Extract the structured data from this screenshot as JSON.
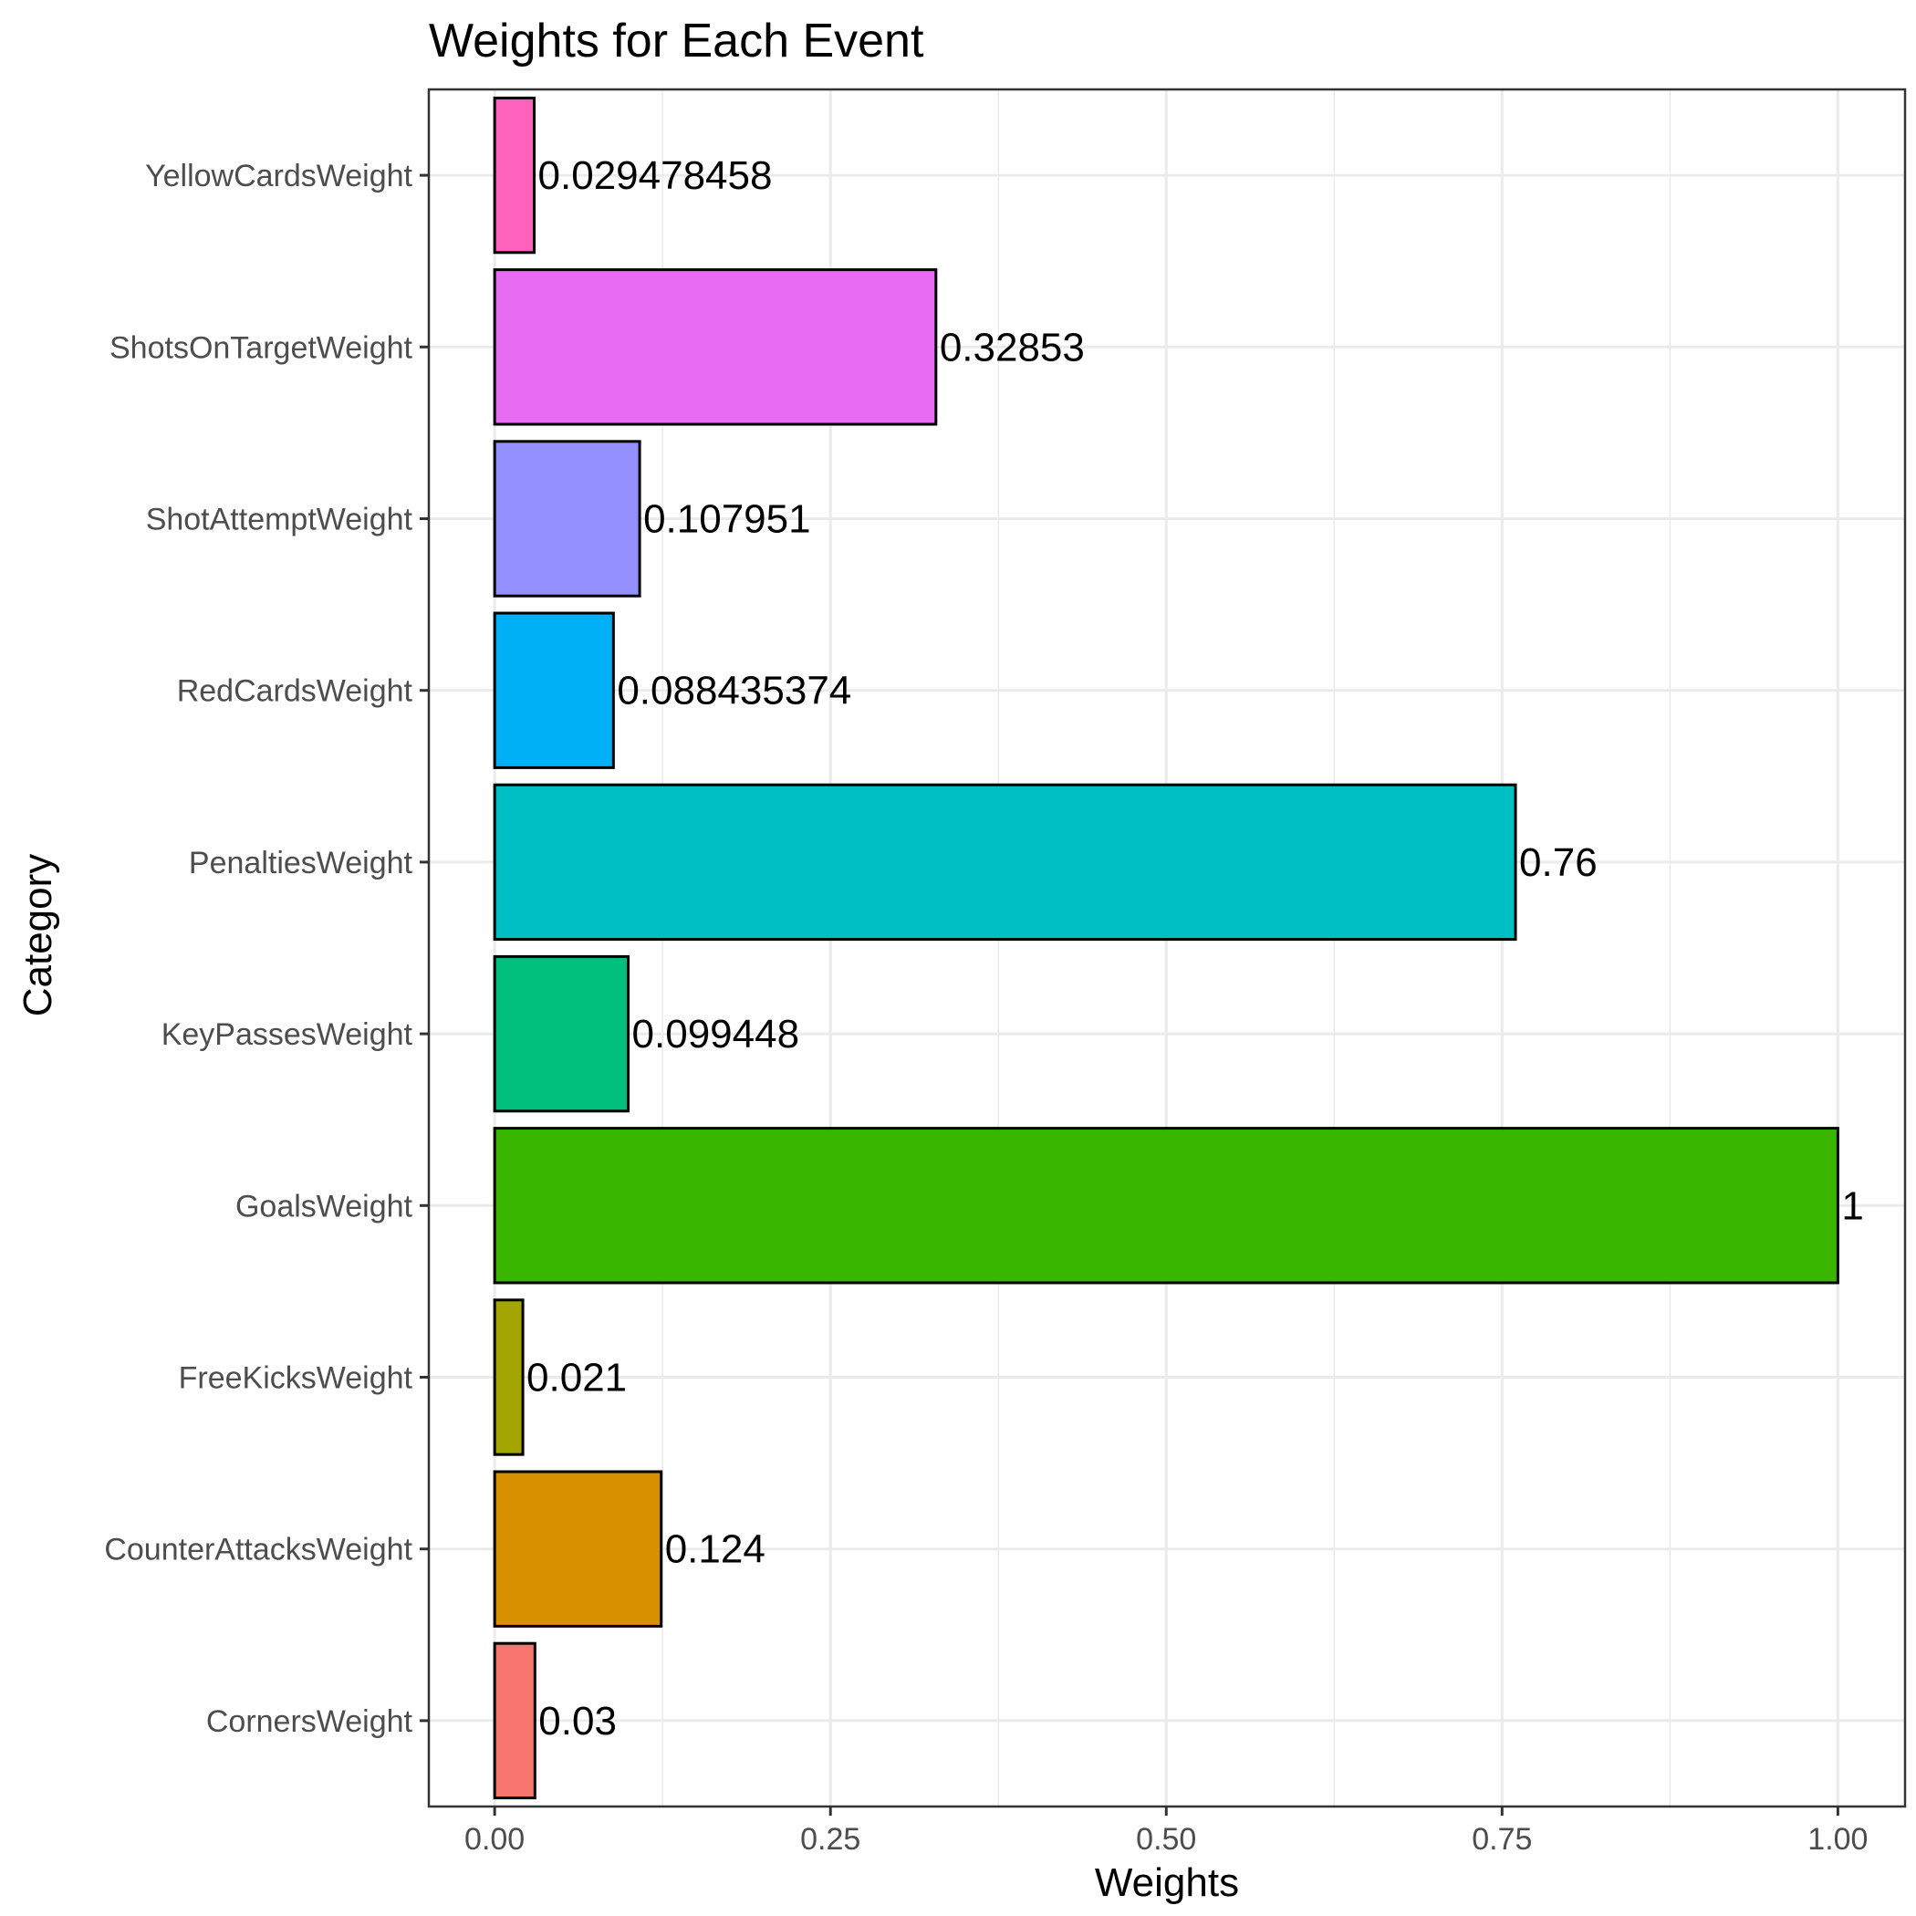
{
  "chart_data": {
    "type": "bar",
    "orientation": "horizontal",
    "title": "Weights for Each Event",
    "xlabel": "Weights",
    "ylabel": "Category",
    "xlim": [
      -0.049,
      1.05
    ],
    "x_ticks": [
      0.0,
      0.25,
      0.5,
      0.75,
      1.0
    ],
    "x_tick_labels": [
      "0.00",
      "0.25",
      "0.50",
      "0.75",
      "1.00"
    ],
    "grid": true,
    "legend": "none",
    "categories": [
      "CornersWeight",
      "CounterAttacksWeight",
      "FreeKicksWeight",
      "GoalsWeight",
      "KeyPassesWeight",
      "PenaltiesWeight",
      "RedCardsWeight",
      "ShotAttemptWeight",
      "ShotsOnTargetWeight",
      "YellowCardsWeight"
    ],
    "values": [
      0.03,
      0.124,
      0.021,
      1,
      0.099448,
      0.76,
      0.088435374,
      0.107951,
      0.32853,
      0.029478458
    ],
    "value_labels": [
      "0.03",
      "0.124",
      "0.021",
      "1",
      "0.099448",
      "0.76",
      "0.088435374",
      "0.107951",
      "0.32853",
      "0.029478458"
    ],
    "colors": [
      "#F8766D",
      "#D89000",
      "#A3A500",
      "#39B600",
      "#00BF7D",
      "#00BFC4",
      "#00B0F6",
      "#9590FF",
      "#E76BF3",
      "#FF62BC"
    ]
  }
}
